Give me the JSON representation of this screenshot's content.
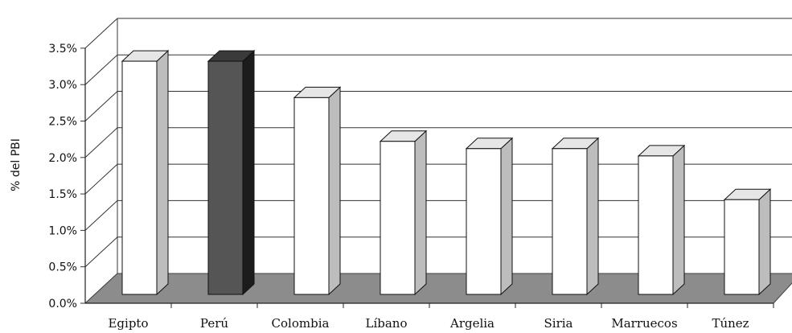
{
  "chart_data": {
    "type": "bar",
    "style": "3d",
    "title": "",
    "xlabel": "",
    "ylabel": "% del PBI",
    "categories": [
      "Egipto",
      "Perú",
      "Colombia",
      "Líbano",
      "Argelia",
      "Siria",
      "Marruecos",
      "Túnez"
    ],
    "values": [
      3.2,
      3.2,
      2.7,
      2.1,
      2.0,
      2.0,
      1.9,
      1.3
    ],
    "highlight": "Perú",
    "ylim": [
      0,
      3.5
    ],
    "yticks": [
      "0.0%",
      "0.5%",
      "1.0%",
      "1.5%",
      "2.0%",
      "2.5%",
      "3.0%",
      "3.5%"
    ],
    "grid": true,
    "legend": "none",
    "colors": {
      "bar_front": "#ffffff",
      "bar_side": "#bdbdbd",
      "bar_top": "#e6e6e6",
      "highlight_front": "#555555",
      "highlight_side": "#1c1c1c",
      "highlight_top": "#3a3a3a",
      "floor": "#8c8c8c",
      "grid": "#333333"
    }
  }
}
